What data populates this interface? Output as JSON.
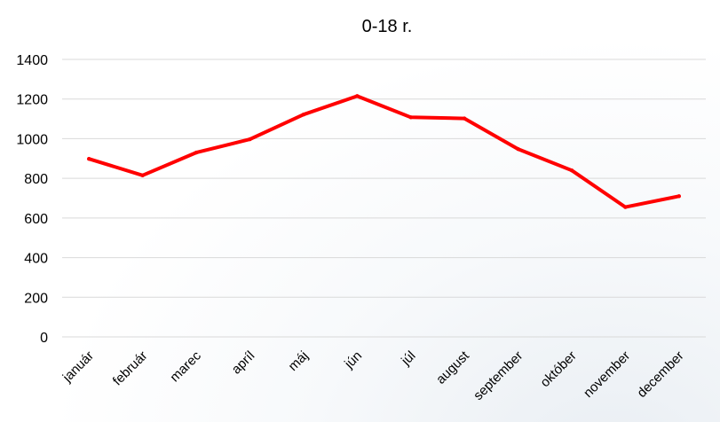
{
  "chart_data": {
    "type": "line",
    "title": "0-18 r.",
    "xlabel": "",
    "ylabel": "",
    "categories": [
      "január",
      "február",
      "marec",
      "apríl",
      "máj",
      "jún",
      "júl",
      "august",
      "september",
      "október",
      "november",
      "december"
    ],
    "series": [
      {
        "values": [
          898,
          815,
          930,
          997,
          1122,
          1215,
          1108,
          1102,
          948,
          840,
          655,
          710
        ],
        "color": "#ff0000"
      }
    ],
    "ylim": [
      0,
      1400
    ],
    "yticks": [
      0,
      200,
      400,
      600,
      800,
      1000,
      1200,
      1400
    ],
    "grid": true,
    "legend": "none"
  }
}
